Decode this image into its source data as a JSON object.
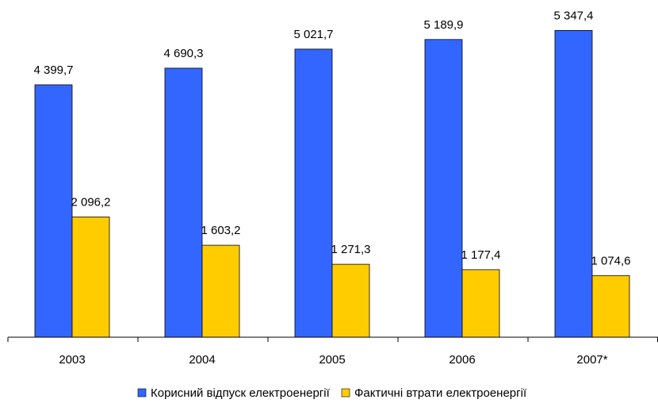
{
  "chart_data": {
    "type": "bar",
    "categories": [
      "2003",
      "2004",
      "2005",
      "2006",
      "2007*"
    ],
    "series": [
      {
        "name": "Корисний відпуск електроенергії",
        "color": "#3366ff",
        "values": [
          4399.7,
          4690.3,
          5021.7,
          5189.9,
          5347.4
        ],
        "labels": [
          "4 399,7",
          "4 690,3",
          "5 021,7",
          "5 189,9",
          "5 347,4"
        ]
      },
      {
        "name": "Фактичні втрати електроенергії",
        "color": "#ffcc00",
        "values": [
          2096.2,
          1603.2,
          1271.3,
          1177.4,
          1074.6
        ],
        "labels": [
          "2 096,2",
          "1 603,2",
          "1 271,3",
          "1 177,4",
          "1 074,6"
        ]
      }
    ],
    "ylim": [
      0,
      6000
    ],
    "grid": false,
    "legend_position": "bottom"
  }
}
